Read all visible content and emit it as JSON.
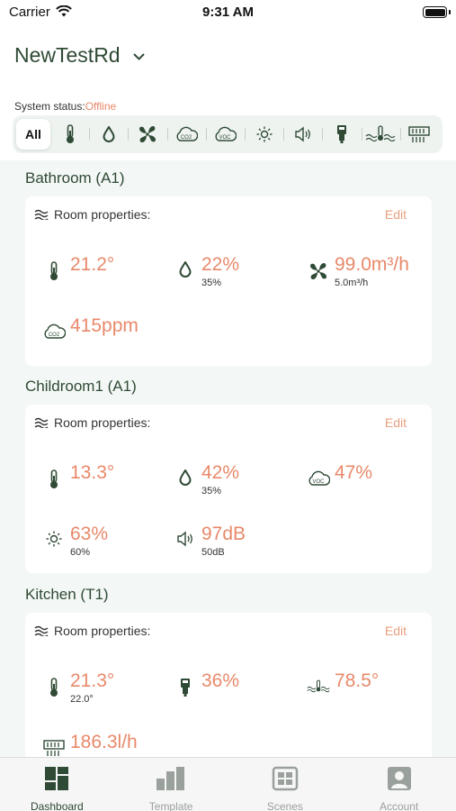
{
  "status_bar": {
    "carrier": "Carrier",
    "time": "9:31 AM"
  },
  "home": {
    "title": "NewTestRd"
  },
  "system_status": {
    "label": "System status:",
    "value": "Offline"
  },
  "filters": {
    "all_label": "All",
    "icons": [
      "thermometer-icon",
      "humidity-icon",
      "fan-icon",
      "co2-icon",
      "voc-icon",
      "light-icon",
      "sound-icon",
      "sensor-device-icon",
      "water-temperature-icon",
      "heater-icon"
    ]
  },
  "rooms": [
    {
      "name": "Bathroom (A1)",
      "header": "Room properties:",
      "edit": "Edit",
      "metrics": [
        {
          "icon": "thermometer-icon",
          "value": "21.2°",
          "sub": ""
        },
        {
          "icon": "humidity-icon",
          "value": "22%",
          "sub": "35%"
        },
        {
          "icon": "fan-icon",
          "value": "99.0m³/h",
          "sub": "5.0m³/h"
        },
        {
          "icon": "co2-icon",
          "value": "415ppm",
          "sub": ""
        }
      ]
    },
    {
      "name": "Childroom1 (A1)",
      "header": "Room properties:",
      "edit": "Edit",
      "metrics": [
        {
          "icon": "thermometer-icon",
          "value": "13.3°",
          "sub": ""
        },
        {
          "icon": "humidity-icon",
          "value": "42%",
          "sub": "35%"
        },
        {
          "icon": "voc-icon",
          "value": "47%",
          "sub": ""
        },
        {
          "icon": "light-icon",
          "value": "63%",
          "sub": "60%"
        },
        {
          "icon": "sound-icon",
          "value": "97dB",
          "sub": "50dB"
        }
      ]
    },
    {
      "name": "Kitchen (T1)",
      "header": "Room properties:",
      "edit": "Edit",
      "metrics": [
        {
          "icon": "thermometer-icon",
          "value": "21.3°",
          "sub": "22.0°"
        },
        {
          "icon": "sensor-device-icon",
          "value": "36%",
          "sub": ""
        },
        {
          "icon": "water-temperature-icon",
          "value": "78.5°",
          "sub": ""
        },
        {
          "icon": "heater-icon",
          "value": "186.3l/h",
          "sub": ""
        }
      ]
    }
  ],
  "tabs": [
    {
      "label": "Dashboard",
      "icon": "dashboard-icon",
      "active": true
    },
    {
      "label": "Template",
      "icon": "template-icon",
      "active": false
    },
    {
      "label": "Scenes",
      "icon": "scenes-icon",
      "active": false
    },
    {
      "label": "Account",
      "icon": "account-icon",
      "active": false
    }
  ],
  "colors": {
    "accent": "#e8896a",
    "primary": "#2f4a35",
    "background": "#f3f7f5"
  }
}
